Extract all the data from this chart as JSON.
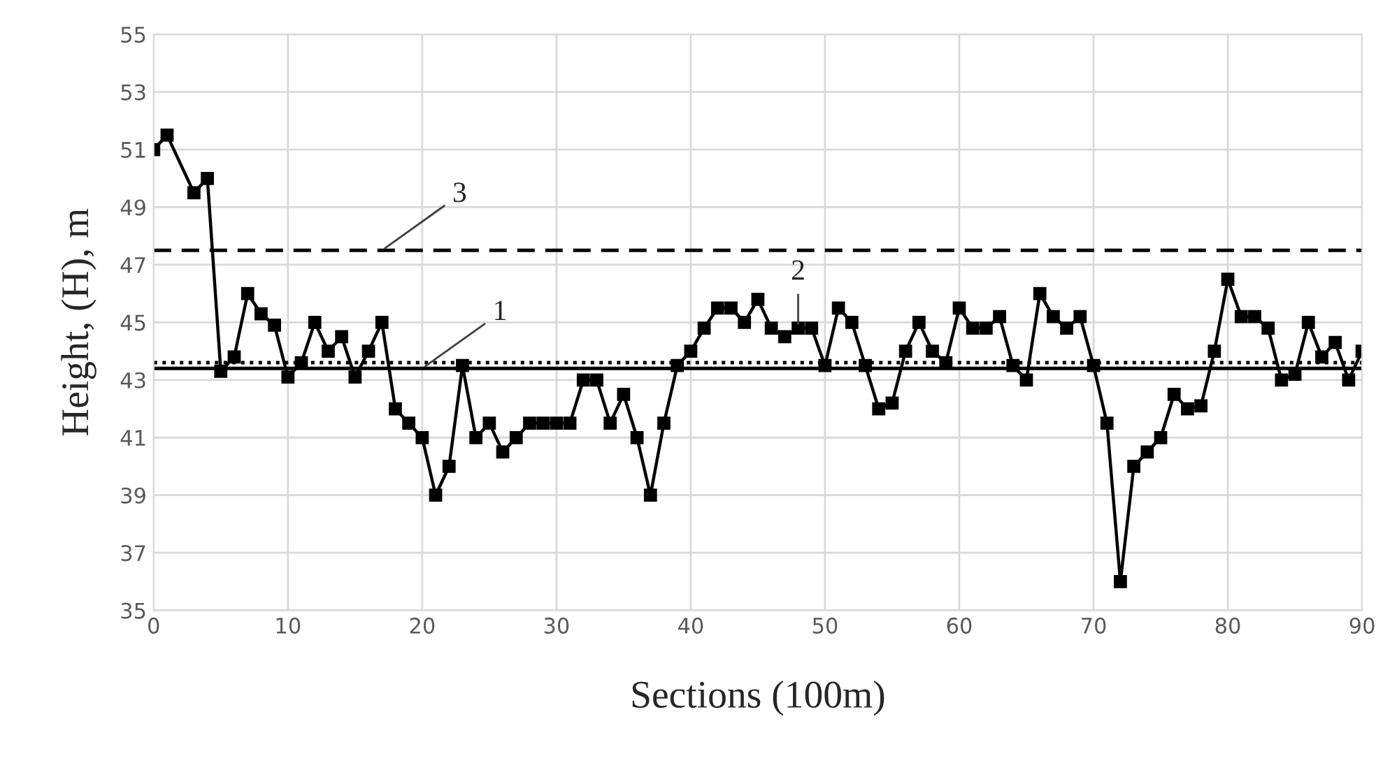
{
  "chart_data": {
    "type": "line",
    "xlabel": "Sections (100m)",
    "ylabel": "Height, (H), m",
    "x": [
      0,
      1,
      3,
      4,
      5,
      6,
      7,
      8,
      9,
      10,
      11,
      12,
      13,
      14,
      15,
      16,
      17,
      18,
      19,
      20,
      21,
      22,
      23,
      24,
      25,
      26,
      27,
      28,
      29,
      30,
      31,
      32,
      33,
      34,
      35,
      36,
      37,
      38,
      39,
      40,
      41,
      42,
      43,
      44,
      45,
      46,
      47,
      48,
      49,
      50,
      51,
      52,
      53,
      54,
      55,
      56,
      57,
      58,
      59,
      60,
      61,
      62,
      63,
      64,
      65,
      66,
      67,
      68,
      69,
      70,
      71,
      72,
      73,
      74,
      75,
      76,
      77,
      78,
      79,
      80,
      81,
      82,
      83,
      84,
      85,
      86,
      87,
      88,
      89,
      90
    ],
    "series": [
      {
        "color": "#000000",
        "values": [
          51,
          51.5,
          49.5,
          50,
          43.3,
          43.8,
          46,
          45.3,
          44.9,
          43.1,
          43.6,
          45,
          44,
          44.5,
          43.1,
          44,
          45,
          42,
          41.5,
          41,
          39,
          40,
          43.5,
          41,
          41.5,
          40.5,
          41,
          41.5,
          41.5,
          41.5,
          41.5,
          43,
          43,
          41.5,
          42.5,
          41,
          39,
          41.5,
          43.5,
          44,
          44.8,
          45.5,
          45.5,
          45,
          45.8,
          44.8,
          44.5,
          44.8,
          44.8,
          43.5,
          45.5,
          45,
          43.5,
          42,
          42.2,
          44,
          45,
          44,
          43.6,
          45.5,
          44.8,
          44.8,
          45.2,
          43.5,
          43,
          46,
          45.2,
          44.8,
          45.2,
          43.5,
          41.5,
          36,
          40,
          40.5,
          41,
          42.5,
          42,
          42.1,
          44,
          46.5,
          45.2,
          45.2,
          44.8,
          43,
          43.2,
          45,
          43.8,
          44.3,
          43,
          44
        ]
      }
    ],
    "marker": "square",
    "line_style": "solid",
    "xlim": [
      0,
      90
    ],
    "xticks": [
      0,
      10,
      20,
      30,
      40,
      50,
      60,
      70,
      80,
      90
    ],
    "ylim": [
      35,
      55
    ],
    "yticks": [
      35,
      37,
      39,
      41,
      43,
      45,
      47,
      49,
      51,
      53,
      55
    ],
    "grid": true,
    "ref_lines": [
      {
        "axis": "y",
        "value": 47.5,
        "line_style": "dashed",
        "color": "#000000"
      },
      {
        "axis": "y",
        "value": 43.6,
        "line_style": "dotted",
        "color": "#000000"
      },
      {
        "axis": "y",
        "value": 43.4,
        "line_style": "solid",
        "color": "#000000"
      }
    ],
    "annotations": [
      {
        "text": "3",
        "x": 17,
        "y": 47.5
      },
      {
        "text": "1",
        "x": 20,
        "y": 43.4
      },
      {
        "text": "2",
        "x": 48,
        "y": 44.8
      }
    ]
  }
}
